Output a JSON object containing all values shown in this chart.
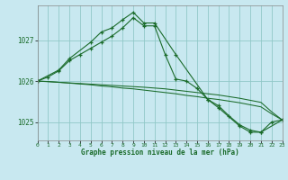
{
  "title": "Graphe pression niveau de la mer (hPa)",
  "bg_color": "#c8e8f0",
  "grid_color": "#90c8c8",
  "line_color": "#1a6b2a",
  "spine_color": "#888888",
  "xlim": [
    0,
    23
  ],
  "ylim": [
    1024.55,
    1027.85
  ],
  "yticks": [
    1025,
    1026,
    1027
  ],
  "xticks": [
    0,
    1,
    2,
    3,
    4,
    5,
    6,
    7,
    8,
    9,
    10,
    11,
    12,
    13,
    14,
    15,
    16,
    17,
    18,
    19,
    20,
    21,
    22,
    23
  ],
  "series": [
    {
      "x": [
        0,
        1,
        2,
        3,
        4,
        5,
        6,
        7,
        8,
        9,
        10,
        11,
        12,
        13,
        14,
        15,
        16,
        17,
        18,
        19,
        20,
        21,
        22,
        23
      ],
      "y": [
        1026.0,
        1026.1,
        1026.25,
        1026.5,
        1026.65,
        1026.8,
        1026.95,
        1027.1,
        1027.3,
        1027.55,
        1027.35,
        1027.35,
        1026.65,
        1026.05,
        1026.0,
        1025.82,
        1025.55,
        1025.4,
        1025.15,
        1024.93,
        1024.8,
        1024.75,
        1025.0,
        1025.05
      ],
      "marker": true
    },
    {
      "x": [
        0,
        2,
        3,
        5,
        6,
        7,
        8,
        9,
        10,
        11,
        13,
        16,
        17,
        19,
        20,
        21,
        23
      ],
      "y": [
        1026.0,
        1026.27,
        1026.55,
        1026.95,
        1027.2,
        1027.3,
        1027.5,
        1027.68,
        1027.42,
        1027.42,
        1026.65,
        1025.55,
        1025.35,
        1024.9,
        1024.75,
        1024.75,
        1025.05
      ],
      "marker": true
    },
    {
      "x": [
        0,
        1,
        2,
        3,
        4,
        5,
        6,
        7,
        8,
        9,
        10,
        11,
        12,
        13,
        14,
        15,
        16,
        17,
        18,
        19,
        20,
        21,
        22,
        23
      ],
      "y": [
        1026.0,
        1025.99,
        1025.97,
        1025.95,
        1025.93,
        1025.91,
        1025.88,
        1025.86,
        1025.83,
        1025.81,
        1025.78,
        1025.75,
        1025.72,
        1025.69,
        1025.65,
        1025.62,
        1025.58,
        1025.55,
        1025.51,
        1025.47,
        1025.42,
        1025.37,
        1025.2,
        1025.05
      ],
      "marker": false
    },
    {
      "x": [
        0,
        1,
        2,
        3,
        4,
        5,
        6,
        7,
        8,
        9,
        10,
        11,
        12,
        13,
        14,
        15,
        16,
        17,
        18,
        19,
        20,
        21,
        22,
        23
      ],
      "y": [
        1026.0,
        1025.985,
        1025.97,
        1025.955,
        1025.94,
        1025.925,
        1025.91,
        1025.895,
        1025.88,
        1025.865,
        1025.85,
        1025.83,
        1025.81,
        1025.78,
        1025.75,
        1025.72,
        1025.69,
        1025.66,
        1025.62,
        1025.58,
        1025.53,
        1025.48,
        1025.25,
        1025.05
      ],
      "marker": false
    }
  ]
}
